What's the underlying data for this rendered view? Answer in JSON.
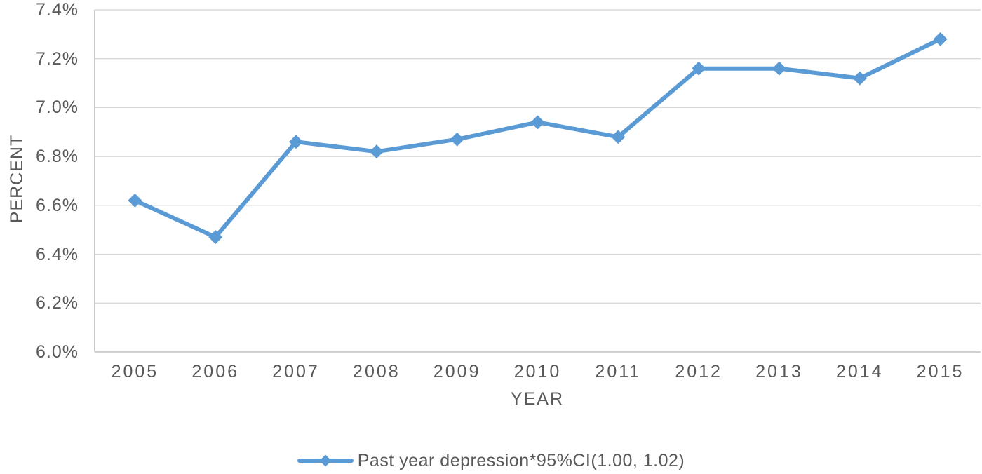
{
  "chart": {
    "ylabel": "PERCENT",
    "xlabel": "YEAR",
    "legend_label": "Past year depression*95%CI(1.00, 1.02)"
  },
  "colors": {
    "series": "#5B9BD5",
    "text": "#595959",
    "gridline": "#D9D9D9",
    "axis": "#C0C0C0",
    "background": "#FFFFFF"
  },
  "chart_data": {
    "type": "line",
    "title": "",
    "categories": [
      "2005",
      "2006",
      "2007",
      "2008",
      "2009",
      "2010",
      "2011",
      "2012",
      "2013",
      "2014",
      "2015"
    ],
    "series": [
      {
        "name": "Past year depression*95%CI(1.00, 1.02)",
        "values": [
          6.62,
          6.47,
          6.86,
          6.82,
          6.87,
          6.94,
          6.88,
          7.16,
          7.16,
          7.12,
          7.28
        ],
        "color": "#5B9BD5",
        "marker": "diamond"
      }
    ],
    "xlabel": "YEAR",
    "ylabel": "PERCENT",
    "ylim": [
      6.0,
      7.4
    ],
    "ytick_step": 0.2,
    "ytick_labels": [
      "6.0%",
      "6.2%",
      "6.4%",
      "6.6%",
      "6.8%",
      "7.0%",
      "7.2%",
      "7.4%"
    ],
    "grid": true,
    "legend_position": "bottom"
  }
}
